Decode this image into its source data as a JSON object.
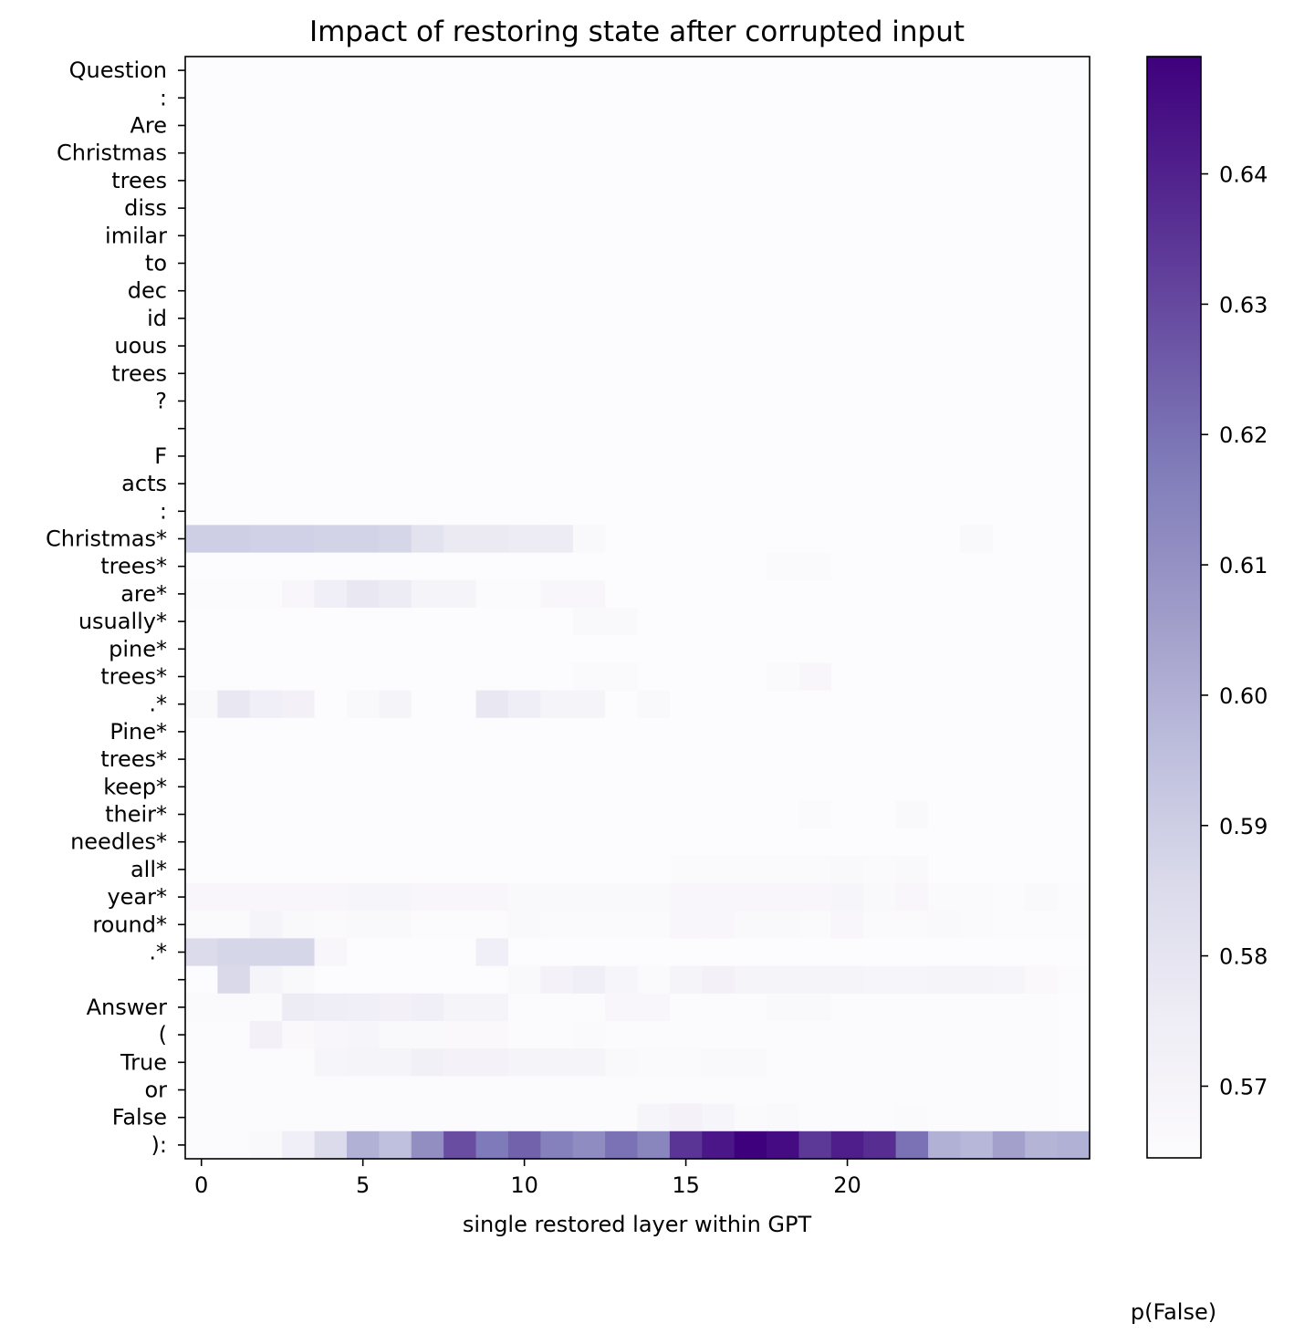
{
  "chart_data": {
    "type": "heatmap",
    "title": "Impact of restoring state after corrupted input",
    "xlabel": "single restored layer within GPT",
    "colorbar_label": "p(False)",
    "x_ticks": [
      0,
      5,
      10,
      15,
      20
    ],
    "x_range": [
      0,
      27
    ],
    "colorbar_ticks": [
      0.57,
      0.58,
      0.59,
      0.6,
      0.61,
      0.62,
      0.63,
      0.64
    ],
    "colorbar_tick_labels": [
      "0.57",
      "0.58",
      "0.59",
      "0.60",
      "0.61",
      "0.62",
      "0.63",
      "0.64"
    ],
    "value_range": [
      0.5645,
      0.649
    ],
    "colormap": "Purples",
    "colormap_stops": [
      "#fcfbfd",
      "#efedf5",
      "#dadaeb",
      "#bcbddc",
      "#9e9ac8",
      "#807dba",
      "#6a51a3",
      "#54278f",
      "#3f007d"
    ],
    "rows": [
      "Question",
      ":",
      "Are",
      "Christmas",
      "trees",
      "diss",
      "imilar",
      "to",
      "dec",
      "id",
      "uous",
      "trees",
      "?",
      "",
      "F",
      "acts",
      ":",
      "Christmas*",
      "trees*",
      "are*",
      "usually*",
      "pine*",
      "trees*",
      ".*",
      "Pine*",
      "trees*",
      "keep*",
      "their*",
      "needles*",
      "all*",
      "year*",
      "round*",
      ".*",
      "",
      "Answer",
      "(",
      "True",
      "or",
      "False",
      "):"
    ],
    "values": [
      [
        0.5645,
        0.5645,
        0.5645,
        0.5645,
        0.5645,
        0.5645,
        0.5645,
        0.5645,
        0.5645,
        0.5645,
        0.5645,
        0.5645,
        0.5645,
        0.5645,
        0.5645,
        0.5645,
        0.5645,
        0.5645,
        0.5645,
        0.5645,
        0.5645,
        0.5645,
        0.5645,
        0.5645,
        0.5645,
        0.5645,
        0.5645,
        0.5645
      ],
      [
        0.5645,
        0.5645,
        0.5645,
        0.5645,
        0.5645,
        0.5645,
        0.5645,
        0.5645,
        0.5645,
        0.5645,
        0.5645,
        0.5645,
        0.5645,
        0.5645,
        0.5645,
        0.5645,
        0.5645,
        0.5645,
        0.5645,
        0.5645,
        0.5645,
        0.5645,
        0.5645,
        0.5645,
        0.5645,
        0.5645,
        0.5645,
        0.5645
      ],
      [
        0.5645,
        0.5645,
        0.5645,
        0.5645,
        0.5645,
        0.5645,
        0.5645,
        0.5645,
        0.5645,
        0.5645,
        0.5645,
        0.5645,
        0.5645,
        0.5645,
        0.5645,
        0.5645,
        0.5645,
        0.5645,
        0.5645,
        0.5645,
        0.5645,
        0.5645,
        0.5645,
        0.5645,
        0.5645,
        0.5645,
        0.5645,
        0.5645
      ],
      [
        0.5645,
        0.5645,
        0.5645,
        0.5645,
        0.5645,
        0.5645,
        0.5645,
        0.5645,
        0.5645,
        0.5645,
        0.5645,
        0.5645,
        0.5645,
        0.5645,
        0.5645,
        0.5645,
        0.5645,
        0.5645,
        0.5645,
        0.5645,
        0.5645,
        0.5645,
        0.5645,
        0.5645,
        0.5645,
        0.5645,
        0.5645,
        0.5645
      ],
      [
        0.5645,
        0.5645,
        0.5645,
        0.5645,
        0.5645,
        0.5645,
        0.5645,
        0.5645,
        0.5645,
        0.5645,
        0.5645,
        0.5645,
        0.5645,
        0.5645,
        0.5645,
        0.5645,
        0.5645,
        0.5645,
        0.5645,
        0.5645,
        0.5645,
        0.5645,
        0.5645,
        0.5645,
        0.5645,
        0.5645,
        0.5645,
        0.5645
      ],
      [
        0.5645,
        0.5645,
        0.5645,
        0.5645,
        0.5645,
        0.5645,
        0.5645,
        0.5645,
        0.5645,
        0.5645,
        0.5645,
        0.5645,
        0.5645,
        0.5645,
        0.5645,
        0.5645,
        0.5645,
        0.5645,
        0.5645,
        0.5645,
        0.5645,
        0.5645,
        0.5645,
        0.5645,
        0.5645,
        0.5645,
        0.5645,
        0.5645
      ],
      [
        0.5645,
        0.5645,
        0.5645,
        0.5645,
        0.5645,
        0.5645,
        0.5645,
        0.5645,
        0.5645,
        0.5645,
        0.5645,
        0.5645,
        0.5645,
        0.5645,
        0.5645,
        0.5645,
        0.5645,
        0.5645,
        0.5645,
        0.5645,
        0.5645,
        0.5645,
        0.5645,
        0.5645,
        0.5645,
        0.5645,
        0.5645,
        0.5645
      ],
      [
        0.5645,
        0.5645,
        0.5645,
        0.5645,
        0.5645,
        0.5645,
        0.5645,
        0.5645,
        0.5645,
        0.5645,
        0.5645,
        0.5645,
        0.5645,
        0.5645,
        0.5645,
        0.5645,
        0.5645,
        0.5645,
        0.5645,
        0.5645,
        0.5645,
        0.5645,
        0.5645,
        0.5645,
        0.5645,
        0.5645,
        0.5645,
        0.5645
      ],
      [
        0.5645,
        0.5645,
        0.5645,
        0.5645,
        0.5645,
        0.5645,
        0.5645,
        0.5645,
        0.5645,
        0.5645,
        0.5645,
        0.5645,
        0.5645,
        0.5645,
        0.5645,
        0.5645,
        0.5645,
        0.5645,
        0.5645,
        0.5645,
        0.5645,
        0.5645,
        0.5645,
        0.5645,
        0.5645,
        0.5645,
        0.5645,
        0.5645
      ],
      [
        0.5645,
        0.5645,
        0.5645,
        0.5645,
        0.5645,
        0.5645,
        0.5645,
        0.5645,
        0.5645,
        0.5645,
        0.5645,
        0.5645,
        0.5645,
        0.5645,
        0.5645,
        0.5645,
        0.5645,
        0.5645,
        0.5645,
        0.5645,
        0.5645,
        0.5645,
        0.5645,
        0.5645,
        0.5645,
        0.5645,
        0.5645,
        0.5645
      ],
      [
        0.5645,
        0.5645,
        0.5645,
        0.5645,
        0.5645,
        0.5645,
        0.5645,
        0.5645,
        0.5645,
        0.5645,
        0.5645,
        0.5645,
        0.5645,
        0.5645,
        0.5645,
        0.5645,
        0.5645,
        0.5645,
        0.5645,
        0.5645,
        0.5645,
        0.5645,
        0.5645,
        0.5645,
        0.5645,
        0.5645,
        0.5645,
        0.5645
      ],
      [
        0.5645,
        0.5645,
        0.5645,
        0.5645,
        0.5645,
        0.5645,
        0.5645,
        0.5645,
        0.5645,
        0.5645,
        0.5645,
        0.5645,
        0.5645,
        0.5645,
        0.5645,
        0.5645,
        0.5645,
        0.5645,
        0.5645,
        0.5645,
        0.5645,
        0.5645,
        0.5645,
        0.5645,
        0.5645,
        0.5645,
        0.5645,
        0.5645
      ],
      [
        0.5645,
        0.5645,
        0.5645,
        0.5645,
        0.5645,
        0.5645,
        0.5645,
        0.5645,
        0.5645,
        0.5645,
        0.5645,
        0.5645,
        0.5645,
        0.5645,
        0.5645,
        0.5645,
        0.5645,
        0.5645,
        0.5645,
        0.5645,
        0.5645,
        0.5645,
        0.5645,
        0.5645,
        0.5645,
        0.5645,
        0.5645,
        0.5645
      ],
      [
        0.5645,
        0.5645,
        0.5645,
        0.5645,
        0.5645,
        0.5645,
        0.5645,
        0.5645,
        0.5645,
        0.5645,
        0.5645,
        0.5645,
        0.5645,
        0.5645,
        0.5645,
        0.5645,
        0.5645,
        0.5645,
        0.5645,
        0.5645,
        0.5645,
        0.5645,
        0.5645,
        0.5645,
        0.5645,
        0.5645,
        0.5645,
        0.5645
      ],
      [
        0.5645,
        0.5645,
        0.5645,
        0.5645,
        0.5645,
        0.5645,
        0.5645,
        0.5645,
        0.5645,
        0.5645,
        0.5645,
        0.5645,
        0.5645,
        0.5645,
        0.5645,
        0.5645,
        0.5645,
        0.5645,
        0.5645,
        0.5645,
        0.5645,
        0.5645,
        0.5645,
        0.5645,
        0.5645,
        0.5645,
        0.5645,
        0.5645
      ],
      [
        0.5645,
        0.5645,
        0.5645,
        0.5645,
        0.5645,
        0.5645,
        0.5645,
        0.5645,
        0.5645,
        0.5645,
        0.5645,
        0.5645,
        0.5645,
        0.5645,
        0.5645,
        0.5645,
        0.5645,
        0.5645,
        0.5645,
        0.5645,
        0.5645,
        0.5645,
        0.5645,
        0.5645,
        0.5645,
        0.5645,
        0.5645,
        0.5645
      ],
      [
        0.5645,
        0.5645,
        0.5645,
        0.5645,
        0.5645,
        0.5645,
        0.5645,
        0.5645,
        0.5645,
        0.5645,
        0.5645,
        0.5645,
        0.5645,
        0.5645,
        0.5645,
        0.5645,
        0.5645,
        0.5645,
        0.5645,
        0.5645,
        0.5645,
        0.5645,
        0.5645,
        0.5645,
        0.5645,
        0.5645,
        0.5645,
        0.5645
      ],
      [
        0.59,
        0.59,
        0.589,
        0.589,
        0.588,
        0.588,
        0.587,
        0.581,
        0.577,
        0.577,
        0.576,
        0.576,
        0.567,
        0.5645,
        0.5645,
        0.5645,
        0.5645,
        0.5645,
        0.5645,
        0.5645,
        0.5645,
        0.5645,
        0.5645,
        0.5645,
        0.567,
        0.5645,
        0.5645,
        0.5645
      ],
      [
        0.5645,
        0.5645,
        0.5645,
        0.5645,
        0.5645,
        0.5645,
        0.5645,
        0.5645,
        0.5645,
        0.5645,
        0.5645,
        0.5645,
        0.5645,
        0.5645,
        0.5645,
        0.5645,
        0.5645,
        0.5645,
        0.566,
        0.566,
        0.5645,
        0.5645,
        0.5645,
        0.5645,
        0.5645,
        0.5645,
        0.5645,
        0.5645
      ],
      [
        0.5655,
        0.5655,
        0.5655,
        0.568,
        0.574,
        0.578,
        0.576,
        0.57,
        0.57,
        0.5655,
        0.5655,
        0.568,
        0.568,
        0.5645,
        0.5645,
        0.5645,
        0.5645,
        0.5645,
        0.5645,
        0.5645,
        0.5645,
        0.5645,
        0.5645,
        0.5645,
        0.5645,
        0.5645,
        0.5645,
        0.5645
      ],
      [
        0.5645,
        0.5645,
        0.5645,
        0.5645,
        0.5645,
        0.5645,
        0.5645,
        0.5645,
        0.5645,
        0.5645,
        0.5645,
        0.5645,
        0.567,
        0.567,
        0.5645,
        0.5645,
        0.5645,
        0.5645,
        0.5645,
        0.5645,
        0.5645,
        0.5645,
        0.5645,
        0.5645,
        0.5645,
        0.5645,
        0.5645,
        0.5645
      ],
      [
        0.5645,
        0.5645,
        0.5645,
        0.5645,
        0.5645,
        0.5645,
        0.5645,
        0.5645,
        0.5645,
        0.5645,
        0.5645,
        0.5645,
        0.5645,
        0.5645,
        0.5645,
        0.5645,
        0.5645,
        0.5645,
        0.5645,
        0.5645,
        0.5645,
        0.5645,
        0.5645,
        0.5645,
        0.5645,
        0.5645,
        0.5645,
        0.5645
      ],
      [
        0.5645,
        0.5645,
        0.5645,
        0.5645,
        0.5645,
        0.5645,
        0.5645,
        0.5645,
        0.5645,
        0.5645,
        0.5645,
        0.5645,
        0.566,
        0.566,
        0.5645,
        0.5645,
        0.5645,
        0.5645,
        0.566,
        0.568,
        0.5645,
        0.5645,
        0.5645,
        0.5645,
        0.5645,
        0.5645,
        0.5645,
        0.5645
      ],
      [
        0.567,
        0.578,
        0.574,
        0.572,
        0.5645,
        0.567,
        0.57,
        0.5645,
        0.5645,
        0.578,
        0.575,
        0.57,
        0.57,
        0.5645,
        0.567,
        0.5645,
        0.5645,
        0.5645,
        0.5645,
        0.5645,
        0.5645,
        0.5645,
        0.5645,
        0.5645,
        0.5645,
        0.5645,
        0.5645,
        0.5645
      ],
      [
        0.5645,
        0.5645,
        0.5645,
        0.5645,
        0.5645,
        0.5645,
        0.5645,
        0.5645,
        0.5645,
        0.5645,
        0.5645,
        0.5645,
        0.5645,
        0.5645,
        0.5645,
        0.5645,
        0.5645,
        0.5645,
        0.5645,
        0.5645,
        0.5645,
        0.5645,
        0.5645,
        0.5645,
        0.5645,
        0.5645,
        0.5645,
        0.5645
      ],
      [
        0.5645,
        0.5645,
        0.5645,
        0.5645,
        0.5645,
        0.5645,
        0.5645,
        0.5645,
        0.5645,
        0.5645,
        0.5645,
        0.5645,
        0.5645,
        0.5645,
        0.5645,
        0.5645,
        0.5645,
        0.5645,
        0.5645,
        0.5645,
        0.5645,
        0.5645,
        0.5645,
        0.5645,
        0.5645,
        0.5645,
        0.5645,
        0.5645
      ],
      [
        0.5645,
        0.5645,
        0.5645,
        0.5645,
        0.5645,
        0.5645,
        0.5645,
        0.5645,
        0.5645,
        0.5645,
        0.5645,
        0.5645,
        0.5645,
        0.5645,
        0.5645,
        0.5645,
        0.5645,
        0.5645,
        0.5645,
        0.5645,
        0.5645,
        0.5645,
        0.5645,
        0.5645,
        0.5645,
        0.5645,
        0.5645,
        0.5645
      ],
      [
        0.5645,
        0.5645,
        0.5645,
        0.5645,
        0.5645,
        0.5645,
        0.5645,
        0.5645,
        0.5645,
        0.5645,
        0.5645,
        0.5645,
        0.5645,
        0.5645,
        0.5645,
        0.5645,
        0.5645,
        0.5645,
        0.5645,
        0.566,
        0.5645,
        0.5645,
        0.567,
        0.5645,
        0.5645,
        0.5645,
        0.5645,
        0.5645
      ],
      [
        0.5645,
        0.5645,
        0.5645,
        0.5645,
        0.5645,
        0.5645,
        0.5645,
        0.5645,
        0.5645,
        0.5645,
        0.5645,
        0.5645,
        0.5645,
        0.5645,
        0.5645,
        0.5645,
        0.5645,
        0.5645,
        0.5645,
        0.5645,
        0.5645,
        0.5645,
        0.5645,
        0.5645,
        0.5645,
        0.5645,
        0.5645,
        0.5645
      ],
      [
        0.5645,
        0.5645,
        0.5645,
        0.5645,
        0.5645,
        0.5645,
        0.5645,
        0.5645,
        0.5645,
        0.5645,
        0.5645,
        0.5645,
        0.5645,
        0.5645,
        0.5645,
        0.566,
        0.566,
        0.566,
        0.566,
        0.566,
        0.567,
        0.566,
        0.567,
        0.5645,
        0.5645,
        0.5645,
        0.5645,
        0.5645
      ],
      [
        0.568,
        0.568,
        0.568,
        0.568,
        0.568,
        0.569,
        0.569,
        0.568,
        0.568,
        0.568,
        0.567,
        0.567,
        0.567,
        0.567,
        0.567,
        0.568,
        0.568,
        0.568,
        0.568,
        0.568,
        0.569,
        0.567,
        0.568,
        0.566,
        0.566,
        0.5655,
        0.567,
        0.5655
      ],
      [
        0.566,
        0.566,
        0.57,
        0.567,
        0.566,
        0.567,
        0.567,
        0.5655,
        0.5655,
        0.5655,
        0.567,
        0.566,
        0.566,
        0.566,
        0.566,
        0.568,
        0.568,
        0.567,
        0.567,
        0.566,
        0.568,
        0.566,
        0.566,
        0.567,
        0.566,
        0.5655,
        0.5655,
        0.5655
      ],
      [
        0.585,
        0.587,
        0.587,
        0.587,
        0.568,
        0.5645,
        0.5645,
        0.5645,
        0.5645,
        0.574,
        0.5645,
        0.5645,
        0.5645,
        0.5645,
        0.5645,
        0.5645,
        0.5645,
        0.5645,
        0.5645,
        0.5645,
        0.5645,
        0.5645,
        0.5645,
        0.5645,
        0.5645,
        0.5645,
        0.5645,
        0.5645
      ],
      [
        0.5645,
        0.586,
        0.57,
        0.567,
        0.5645,
        0.5645,
        0.5645,
        0.5645,
        0.5645,
        0.5645,
        0.567,
        0.571,
        0.574,
        0.569,
        0.566,
        0.57,
        0.572,
        0.57,
        0.57,
        0.57,
        0.57,
        0.569,
        0.569,
        0.57,
        0.57,
        0.569,
        0.5665,
        0.5655
      ],
      [
        0.566,
        0.566,
        0.566,
        0.576,
        0.575,
        0.574,
        0.572,
        0.574,
        0.57,
        0.57,
        0.5655,
        0.5655,
        0.5655,
        0.568,
        0.568,
        0.5655,
        0.5655,
        0.5655,
        0.567,
        0.567,
        0.5655,
        0.5655,
        0.5655,
        0.5655,
        0.5655,
        0.5655,
        0.5655,
        0.5645
      ],
      [
        0.5655,
        0.5655,
        0.572,
        0.5665,
        0.568,
        0.569,
        0.567,
        0.567,
        0.5665,
        0.5665,
        0.5655,
        0.5655,
        0.566,
        0.5655,
        0.5655,
        0.5655,
        0.5655,
        0.5655,
        0.5655,
        0.5655,
        0.5655,
        0.5655,
        0.5655,
        0.5655,
        0.5655,
        0.5655,
        0.5655,
        0.5645
      ],
      [
        0.5655,
        0.5655,
        0.5655,
        0.5655,
        0.569,
        0.57,
        0.57,
        0.573,
        0.571,
        0.571,
        0.57,
        0.57,
        0.57,
        0.567,
        0.566,
        0.566,
        0.567,
        0.567,
        0.5655,
        0.5655,
        0.5655,
        0.5655,
        0.5655,
        0.5655,
        0.5655,
        0.5655,
        0.5655,
        0.5645
      ],
      [
        0.5655,
        0.5655,
        0.5655,
        0.5655,
        0.5655,
        0.5655,
        0.5655,
        0.5655,
        0.5655,
        0.5655,
        0.5655,
        0.5655,
        0.5655,
        0.5655,
        0.5655,
        0.5655,
        0.5655,
        0.5655,
        0.5655,
        0.5655,
        0.5655,
        0.5655,
        0.5655,
        0.5655,
        0.5655,
        0.5655,
        0.5655,
        0.5645
      ],
      [
        0.5655,
        0.5655,
        0.5655,
        0.5655,
        0.5655,
        0.5655,
        0.5655,
        0.5655,
        0.5655,
        0.5655,
        0.5655,
        0.5655,
        0.5655,
        0.5655,
        0.569,
        0.571,
        0.569,
        0.566,
        0.567,
        0.5655,
        0.5655,
        0.5655,
        0.566,
        0.5655,
        0.5655,
        0.5655,
        0.5655,
        0.5645
      ],
      [
        0.5655,
        0.5655,
        0.567,
        0.574,
        0.585,
        0.6,
        0.595,
        0.611,
        0.629,
        0.618,
        0.624,
        0.616,
        0.612,
        0.62,
        0.614,
        0.635,
        0.643,
        0.649,
        0.646,
        0.634,
        0.641,
        0.637,
        0.62,
        0.6,
        0.598,
        0.605,
        0.599,
        0.6
      ]
    ]
  }
}
